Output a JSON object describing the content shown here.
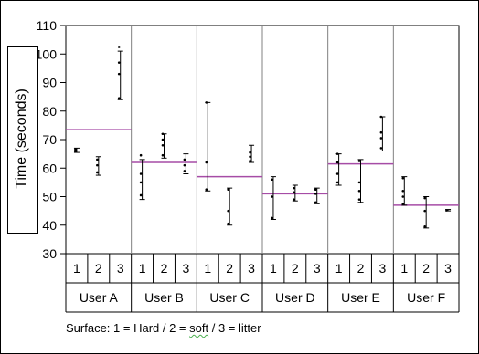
{
  "chart_data": {
    "type": "scatter",
    "ylabel": "Time (seconds)",
    "ylim": [
      30,
      110
    ],
    "yticks": [
      30,
      40,
      50,
      60,
      70,
      80,
      90,
      100,
      110
    ],
    "surfaces": [
      "1",
      "2",
      "3"
    ],
    "users": [
      "User A",
      "User B",
      "User C",
      "User D",
      "User E",
      "User F"
    ],
    "groups": [
      {
        "user": "User A",
        "mean": 73.5,
        "surfaces": [
          {
            "surface": "1",
            "min": 65.5,
            "max": 67,
            "points": [
              65.8,
              66.2,
              66.6
            ]
          },
          {
            "surface": "2",
            "min": 57.5,
            "max": 64,
            "points": [
              58.5,
              61,
              63
            ]
          },
          {
            "surface": "3",
            "min": 84,
            "max": 101,
            "points": [
              84.5,
              93,
              97,
              102.5
            ]
          }
        ]
      },
      {
        "user": "User B",
        "mean": 62,
        "surfaces": [
          {
            "surface": "1",
            "min": 49,
            "max": 63,
            "points": [
              50.5,
              55,
              58,
              64.5
            ]
          },
          {
            "surface": "2",
            "min": 63.5,
            "max": 72,
            "points": [
              64.5,
              68,
              70,
              72
            ]
          },
          {
            "surface": "3",
            "min": 58,
            "max": 65,
            "points": [
              59,
              61,
              63
            ]
          }
        ]
      },
      {
        "user": "User C",
        "mean": 57,
        "surfaces": [
          {
            "surface": "1",
            "min": 52,
            "max": 83,
            "points": [
              52.5,
              62,
              83
            ]
          },
          {
            "surface": "2",
            "min": 40,
            "max": 53,
            "points": [
              40.5,
              45,
              52.5
            ]
          },
          {
            "surface": "3",
            "min": 62,
            "max": 68,
            "points": [
              62.5,
              64,
              65.5
            ]
          }
        ]
      },
      {
        "user": "User D",
        "mean": 51,
        "surfaces": [
          {
            "surface": "1",
            "min": 42,
            "max": 57,
            "points": [
              42.5,
              50,
              56
            ]
          },
          {
            "surface": "2",
            "min": 48.5,
            "max": 54,
            "points": [
              49,
              51.5,
              53
            ]
          },
          {
            "surface": "3",
            "min": 47.5,
            "max": 53,
            "points": [
              48,
              51,
              52.5
            ]
          }
        ]
      },
      {
        "user": "User E",
        "mean": 61.5,
        "surfaces": [
          {
            "surface": "1",
            "min": 54,
            "max": 65,
            "points": [
              55,
              58,
              62,
              65
            ]
          },
          {
            "surface": "2",
            "min": 48,
            "max": 63,
            "points": [
              49,
              52,
              55,
              62.5
            ]
          },
          {
            "surface": "3",
            "min": 66,
            "max": 78,
            "points": [
              67,
              70.5,
              72.5,
              78
            ]
          }
        ]
      },
      {
        "user": "User F",
        "mean": 47,
        "surfaces": [
          {
            "surface": "1",
            "min": 47,
            "max": 57,
            "points": [
              47.5,
              50,
              52,
              56.5
            ]
          },
          {
            "surface": "2",
            "min": 39,
            "max": 50,
            "points": [
              39.5,
              45,
              49.5
            ]
          },
          {
            "surface": "3",
            "min": 45,
            "max": 45.5,
            "points": [
              45.2
            ]
          }
        ]
      }
    ],
    "colors": {
      "mean_line": "#a64ca6",
      "points": "#000000",
      "grid": "#808080"
    }
  },
  "footnote": {
    "prefix": "Surface: 1 = Hard / 2 = ",
    "soft_word": "soft",
    "suffix": "  / 3 = litter"
  }
}
